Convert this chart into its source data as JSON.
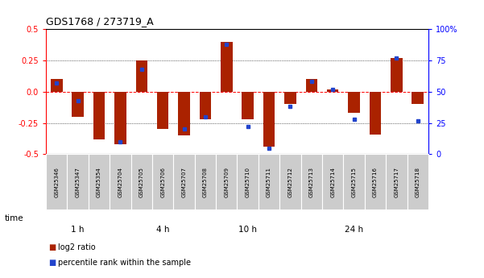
{
  "title": "GDS1768 / 273719_A",
  "samples": [
    "GSM25346",
    "GSM25347",
    "GSM25354",
    "GSM25704",
    "GSM25705",
    "GSM25706",
    "GSM25707",
    "GSM25708",
    "GSM25709",
    "GSM25710",
    "GSM25711",
    "GSM25712",
    "GSM25713",
    "GSM25714",
    "GSM25715",
    "GSM25716",
    "GSM25717",
    "GSM25718"
  ],
  "log2_ratio": [
    0.1,
    -0.2,
    -0.38,
    -0.42,
    0.25,
    -0.3,
    -0.35,
    -0.22,
    0.4,
    -0.22,
    -0.44,
    -0.1,
    0.1,
    0.02,
    -0.17,
    -0.34,
    0.27,
    -0.1
  ],
  "percentile_rank": [
    57,
    43,
    null,
    10,
    68,
    null,
    20,
    30,
    88,
    22,
    5,
    38,
    58,
    52,
    28,
    null,
    77,
    27
  ],
  "time_groups": [
    {
      "label": "1 h",
      "start": 0,
      "end": 3,
      "color": "#d4f7d4"
    },
    {
      "label": "4 h",
      "start": 3,
      "end": 8,
      "color": "#aaeeaa"
    },
    {
      "label": "10 h",
      "start": 8,
      "end": 11,
      "color": "#88dd88"
    },
    {
      "label": "24 h",
      "start": 11,
      "end": 18,
      "color": "#44cc44"
    }
  ],
  "ylim": [
    -0.5,
    0.5
  ],
  "yticks_left": [
    -0.5,
    -0.25,
    0.0,
    0.25,
    0.5
  ],
  "yticks_right": [
    0,
    25,
    50,
    75,
    100
  ],
  "bar_color": "#aa2200",
  "dot_color": "#2244cc",
  "legend_red": "log2 ratio",
  "legend_blue": "percentile rank within the sample"
}
